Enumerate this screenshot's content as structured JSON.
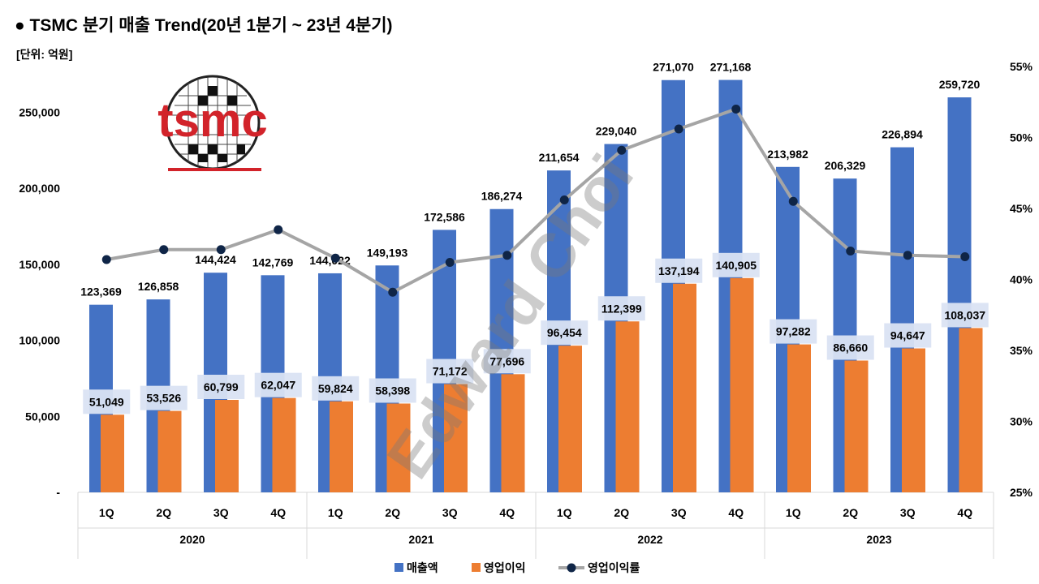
{
  "title": "● TSMC 분기 매출 Trend(20년 1분기 ~ 23년 4분기)",
  "unit_note": "[단위: 억원]",
  "watermark": "Edward Choi",
  "logo": {
    "text": "tsmc",
    "color": "#d2232a"
  },
  "colors": {
    "revenue": "#4472c4",
    "operating_profit": "#ed7d31",
    "margin_line": "#a5a5a5",
    "margin_marker": "#0f2547",
    "label_box": "#dae3f3",
    "grid_line": "#d9d9d9"
  },
  "legend": {
    "revenue": "매출액",
    "operating_profit": "영업이익",
    "margin": "영업이익률"
  },
  "chart_data": {
    "type": "bar",
    "title": "● TSMC 분기 매출 Trend(20년 1분기 ~ 23년 4분기)",
    "ylabel": "[단위: 억원]",
    "xlabel": "",
    "categories": [
      "1Q",
      "2Q",
      "3Q",
      "4Q",
      "1Q",
      "2Q",
      "3Q",
      "4Q",
      "1Q",
      "2Q",
      "3Q",
      "4Q",
      "1Q",
      "2Q",
      "3Q",
      "4Q"
    ],
    "groups": [
      {
        "label": "2020",
        "start": 0,
        "end": 3
      },
      {
        "label": "2021",
        "start": 4,
        "end": 7
      },
      {
        "label": "2022",
        "start": 8,
        "end": 11
      },
      {
        "label": "2023",
        "start": 12,
        "end": 15
      }
    ],
    "series": [
      {
        "name": "매출액",
        "type": "bar",
        "axis": "left",
        "values": [
          123369,
          126858,
          144424,
          142769,
          144022,
          149193,
          172586,
          186274,
          211654,
          229040,
          271070,
          271168,
          213982,
          206329,
          226894,
          259720
        ],
        "labels": [
          "123,369",
          "126,858",
          "144,424",
          "142,769",
          "144,022",
          "149,193",
          "172,586",
          "186,274",
          "211,654",
          "229,040",
          "271,070",
          "271,168",
          "213,982",
          "206,329",
          "226,894",
          "259,720"
        ]
      },
      {
        "name": "영업이익",
        "type": "bar",
        "axis": "left",
        "values": [
          51049,
          53526,
          60799,
          62047,
          59824,
          58398,
          71172,
          77696,
          96454,
          112399,
          137194,
          140905,
          97282,
          86660,
          94647,
          108037
        ],
        "labels": [
          "51,049",
          "53,526",
          "60,799",
          "62,047",
          "59,824",
          "58,398",
          "71,172",
          "77,696",
          "96,454",
          "112,399",
          "137,194",
          "140,905",
          "97,282",
          "86,660",
          "94,647",
          "108,037"
        ]
      },
      {
        "name": "영업이익률",
        "type": "line",
        "axis": "right",
        "values": [
          41.4,
          42.1,
          42.1,
          43.5,
          41.5,
          39.1,
          41.2,
          41.7,
          45.6,
          49.1,
          50.6,
          52.0,
          45.5,
          42.0,
          41.7,
          41.6
        ]
      }
    ],
    "left_axis": {
      "ylim": [
        0,
        280000
      ],
      "ticks": [
        0,
        50000,
        100000,
        150000,
        200000,
        250000
      ],
      "tick_labels": [
        "-",
        "50,000",
        "100,000",
        "150,000",
        "200,000",
        "250,000"
      ]
    },
    "right_axis": {
      "ylim": [
        25,
        55
      ],
      "ticks": [
        25,
        30,
        35,
        40,
        45,
        50,
        55
      ],
      "tick_labels": [
        "25%",
        "30%",
        "35%",
        "40%",
        "45%",
        "50%",
        "55%"
      ]
    },
    "legend_position": "bottom-center",
    "grid": false
  }
}
